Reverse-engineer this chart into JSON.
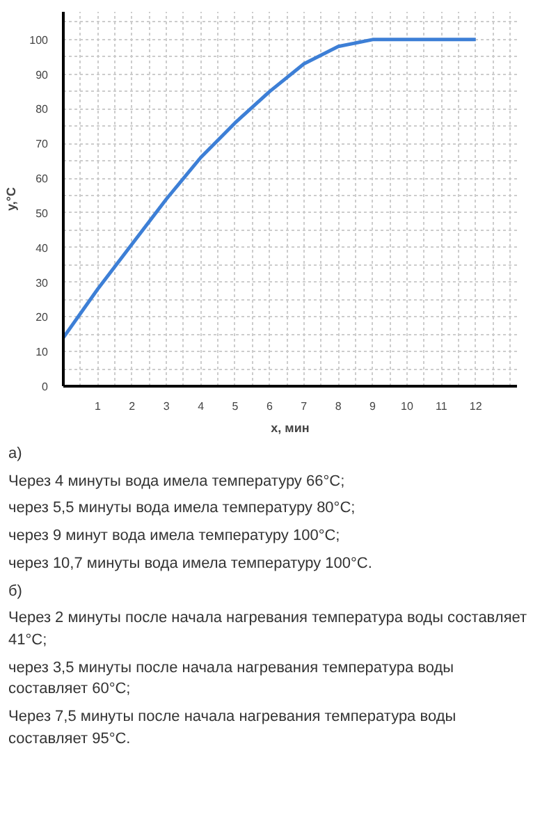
{
  "chart_data": {
    "type": "line",
    "xlabel": "x, мин",
    "ylabel": "y,°C",
    "x": [
      0,
      1,
      2,
      3,
      4,
      5,
      6,
      7,
      8,
      9,
      10,
      11,
      12
    ],
    "series": [
      {
        "color": "#3d7fd6",
        "values": [
          14,
          28,
          41,
          54,
          66,
          76,
          85,
          93,
          98,
          100,
          100,
          100,
          100
        ]
      }
    ],
    "xlim": [
      0,
      13.2
    ],
    "ylim": [
      0,
      108
    ],
    "xticks": [
      1,
      2,
      3,
      4,
      5,
      6,
      7,
      8,
      9,
      10,
      11,
      12
    ],
    "yticks": [
      0,
      10,
      20,
      30,
      40,
      50,
      60,
      70,
      80,
      90,
      100
    ],
    "grid": true,
    "marker": "none",
    "line_style": "solid",
    "annotations": [
      "а)",
      "Через 4 минуты вода имела температуру 66°C;",
      "через 5,5 минуты вода имела температуру 80°C;",
      "через 9 минут вода имела температуру 100°C;",
      "через 10,7 минуты вода имела температуру 100°C.",
      "б)",
      "Через 2 минуты после начала нагревания температура воды составляет 41°C;",
      "через 3,5 минуты после начала нагревания температура воды составляет 60°C;",
      "Через 7,5 минуты после начала нагревания температура воды составляет 95°C."
    ]
  }
}
